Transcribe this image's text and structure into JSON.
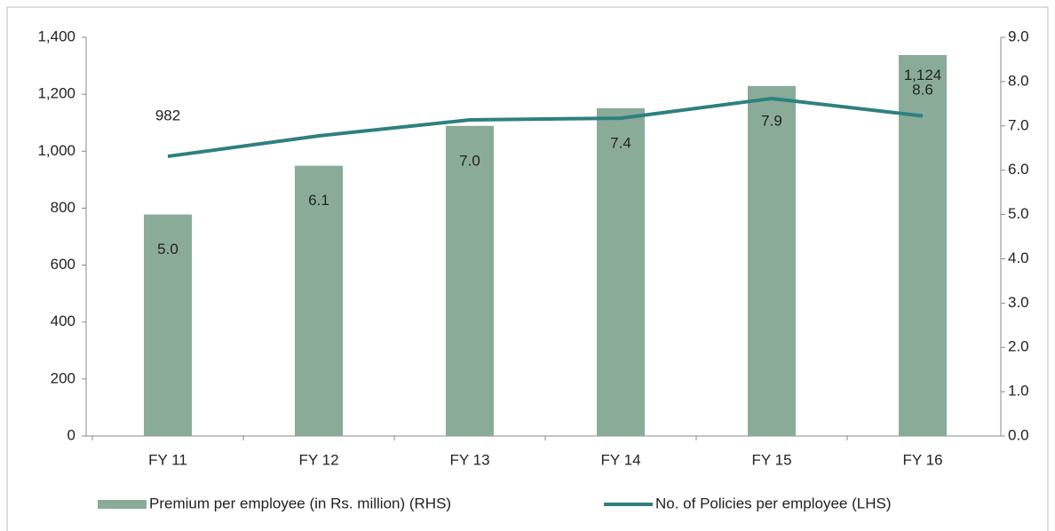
{
  "chart_data": {
    "type": "bar",
    "categories": [
      "FY 11",
      "FY 12",
      "FY 13",
      "FY 14",
      "FY 15",
      "FY 16"
    ],
    "series": [
      {
        "name": "Premium per employee (in Rs. million) (RHS)",
        "type": "bar",
        "axis": "y2",
        "color": "#8aab98",
        "values": [
          5.0,
          6.1,
          7.0,
          7.4,
          7.9,
          8.6
        ],
        "value_labels": [
          "5.0",
          "6.1",
          "7.0",
          "7.4",
          "7.9",
          "8.6"
        ]
      },
      {
        "name": "No. of Policies per employee (LHS)",
        "type": "line",
        "color": "#2e8080",
        "values": [
          982,
          1054,
          1110,
          1116,
          1185,
          1124
        ],
        "value_labels": [
          "982",
          null,
          null,
          null,
          null,
          "1,124"
        ]
      }
    ],
    "ylim": [
      0,
      1400
    ],
    "yticks": [
      0,
      200,
      400,
      600,
      800,
      {
        "value": 1000,
        "label": "1,000"
      },
      {
        "value": 1200,
        "label": "1,200"
      },
      {
        "value": 1400,
        "label": "1,400"
      }
    ],
    "y2lim": [
      0,
      9
    ],
    "y2ticks": [
      {
        "value": 0,
        "label": "0.0"
      },
      {
        "value": 1,
        "label": "1.0"
      },
      {
        "value": 2,
        "label": "2.0"
      },
      {
        "value": 3,
        "label": "3.0"
      },
      {
        "value": 4,
        "label": "4.0"
      },
      {
        "value": 5,
        "label": "5.0"
      },
      {
        "value": 6,
        "label": "6.0"
      },
      {
        "value": 7,
        "label": "7.0"
      },
      {
        "value": 8,
        "label": "8.0"
      },
      {
        "value": 9,
        "label": "9.0"
      }
    ],
    "legend": "bottom"
  }
}
